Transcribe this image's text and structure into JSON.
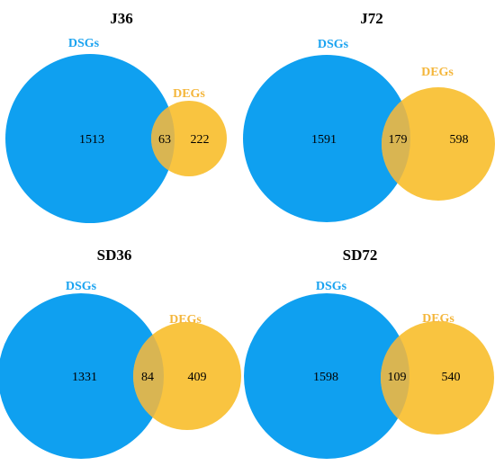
{
  "colors": {
    "dsg": "#0fa0f0",
    "deg": "#f9c440",
    "overlap": "#d9b552",
    "dsg_label": "#1aa3f0",
    "deg_label": "#f4b63b"
  },
  "panels": [
    {
      "title": "J36",
      "set_a": "DSGs",
      "set_b": "DEGs",
      "only_a": "1513",
      "both": "63",
      "only_b": "222"
    },
    {
      "title": "J72",
      "set_a": "DSGs",
      "set_b": "DEGs",
      "only_a": "1591",
      "both": "179",
      "only_b": "598"
    },
    {
      "title": "SD36",
      "set_a": "DSGs",
      "set_b": "DEGs",
      "only_a": "1331",
      "both": "84",
      "only_b": "409"
    },
    {
      "title": "SD72",
      "set_a": "DSGs",
      "set_b": "DEGs",
      "only_a": "1598",
      "both": "109",
      "only_b": "540"
    }
  ]
}
